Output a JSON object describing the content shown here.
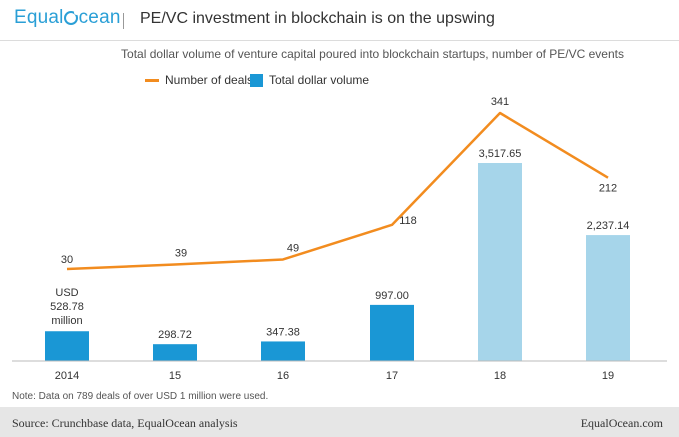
{
  "header": {
    "logo_prefix": "Equal",
    "logo_suffix": "cean",
    "title": "PE/VC investment in blockchain is on the upswing"
  },
  "subtitle": "Total dollar volume of venture capital poured into blockchain startups, number of PE/VC events",
  "legend": {
    "line_label": "Number of deals",
    "bar_label": "Total dollar volume"
  },
  "note": "Note: Data on 789 deals of over USD 1 million were used.",
  "footer": {
    "source": "Source: Crunchbase data, EqualOcean analysis",
    "site": "EqualOcean.com"
  },
  "colors": {
    "bar_dark": "#1a97d5",
    "bar_light": "#a6d5ea",
    "line": "#f28c1f"
  },
  "chart_data": {
    "type": "bar",
    "categories": [
      "2014",
      "15",
      "16",
      "17",
      "18",
      "19"
    ],
    "bar_unit_labels": [
      "USD",
      "million"
    ],
    "series": [
      {
        "name": "Total dollar volume",
        "type": "bar",
        "values": [
          528.78,
          298.72,
          347.38,
          997.0,
          3517.65,
          2237.14
        ],
        "labels": [
          "528.78",
          "298.72",
          "347.38",
          "997.00",
          "3,517.65",
          "2,237.14"
        ],
        "highlight": [
          false,
          false,
          false,
          false,
          true,
          true
        ]
      },
      {
        "name": "Number of deals",
        "type": "line",
        "values": [
          30,
          39,
          49,
          118,
          341,
          212
        ],
        "labels": [
          "30",
          "39",
          "49",
          "118",
          "341",
          "212"
        ]
      }
    ],
    "grid": false,
    "legend_position": "top-left"
  }
}
